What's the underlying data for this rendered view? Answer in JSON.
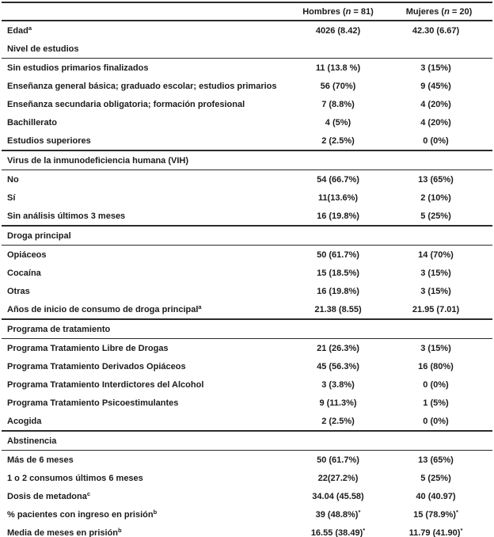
{
  "colors": {
    "text": "#1b1b1b",
    "rule": "#2b2b2b",
    "background": "#ffffff"
  },
  "table": {
    "header": {
      "label": "",
      "hombres": {
        "pre": "Hombres (",
        "n": "n",
        "post": " = 81)"
      },
      "mujeres": {
        "pre": "Mujeres (",
        "n": "n",
        "post": " = 20)"
      }
    },
    "rows": [
      {
        "type": "data",
        "label": "Edad",
        "label_sup": "a",
        "hombres": "4026 (8.42)",
        "hombres_mark": "",
        "mujeres": "42.30 (6.67)",
        "mujeres_mark": ""
      },
      {
        "type": "section",
        "label": "Nivel de estudios",
        "top_rule": false
      },
      {
        "type": "data",
        "label": "Sin estudios primarios finalizados",
        "label_sup": "",
        "hombres": "11 (13.8 %)",
        "hombres_mark": "",
        "mujeres": "3 (15%)",
        "mujeres_mark": ""
      },
      {
        "type": "data",
        "label": "Enseñanza general básica; graduado escolar; estudios primarios",
        "label_sup": "",
        "hombres": "56 (70%)",
        "hombres_mark": "",
        "mujeres": "9 (45%)",
        "mujeres_mark": ""
      },
      {
        "type": "data",
        "label": "Enseñanza secundaria obligatoria; formación profesional",
        "label_sup": "",
        "hombres": "7 (8.8%)",
        "hombres_mark": "",
        "mujeres": "4 (20%)",
        "mujeres_mark": ""
      },
      {
        "type": "data",
        "label": "Bachillerato",
        "label_sup": "",
        "hombres": "4 (5%)",
        "hombres_mark": "",
        "mujeres": "4 (20%)",
        "mujeres_mark": ""
      },
      {
        "type": "data",
        "label": "Estudios superiores",
        "label_sup": "",
        "hombres": "2 (2.5%)",
        "hombres_mark": "",
        "mujeres": "0 (0%)",
        "mujeres_mark": ""
      },
      {
        "type": "section",
        "label": "Virus de la inmunodeficiencia humana (VIH)",
        "top_rule": true
      },
      {
        "type": "data",
        "label": "No",
        "label_sup": "",
        "hombres": "54 (66.7%)",
        "hombres_mark": "",
        "mujeres": "13 (65%)",
        "mujeres_mark": ""
      },
      {
        "type": "data",
        "label": "Sí",
        "label_sup": "",
        "hombres": "11(13.6%)",
        "hombres_mark": "",
        "mujeres": "2 (10%)",
        "mujeres_mark": ""
      },
      {
        "type": "data",
        "label": "Sin análisis últimos 3 meses",
        "label_sup": "",
        "hombres": "16 (19.8%)",
        "hombres_mark": "",
        "mujeres": "5 (25%)",
        "mujeres_mark": ""
      },
      {
        "type": "section",
        "label": "Droga principal",
        "top_rule": true
      },
      {
        "type": "data",
        "label": "Opiáceos",
        "label_sup": "",
        "hombres": "50 (61.7%)",
        "hombres_mark": "",
        "mujeres": "14 (70%)",
        "mujeres_mark": ""
      },
      {
        "type": "data",
        "label": "Cocaína",
        "label_sup": "",
        "hombres": "15 (18.5%)",
        "hombres_mark": "",
        "mujeres": "3 (15%)",
        "mujeres_mark": ""
      },
      {
        "type": "data",
        "label": "Otras",
        "label_sup": "",
        "hombres": "16 (19.8%)",
        "hombres_mark": "",
        "mujeres": "3 (15%)",
        "mujeres_mark": ""
      },
      {
        "type": "data",
        "label": "Años de inicio de consumo de droga principal",
        "label_sup": "a",
        "hombres": "21.38 (8.55)",
        "hombres_mark": "",
        "mujeres": "21.95 (7.01)",
        "mujeres_mark": ""
      },
      {
        "type": "section",
        "label": "Programa de tratamiento",
        "top_rule": true
      },
      {
        "type": "data",
        "label": "Programa Tratamiento Libre de Drogas",
        "label_sup": "",
        "hombres": "21 (26.3%)",
        "hombres_mark": "",
        "mujeres": "3 (15%)",
        "mujeres_mark": ""
      },
      {
        "type": "data",
        "label": "Programa Tratamiento Derivados Opiáceos",
        "label_sup": "",
        "hombres": "45 (56.3%)",
        "hombres_mark": "",
        "mujeres": "16 (80%)",
        "mujeres_mark": ""
      },
      {
        "type": "data",
        "label": "Programa Tratamiento Interdictores del Alcohol",
        "label_sup": "",
        "hombres": "3 (3.8%)",
        "hombres_mark": "",
        "mujeres": "0 (0%)",
        "mujeres_mark": ""
      },
      {
        "type": "data",
        "label": "Programa Tratamiento Psicoestimulantes",
        "label_sup": "",
        "hombres": "9 (11.3%)",
        "hombres_mark": "",
        "mujeres": "1 (5%)",
        "mujeres_mark": ""
      },
      {
        "type": "data",
        "label": "Acogida",
        "label_sup": "",
        "hombres": "2 (2.5%)",
        "hombres_mark": "",
        "mujeres": "0 (0%)",
        "mujeres_mark": ""
      },
      {
        "type": "section",
        "label": "Abstinencia",
        "top_rule": true
      },
      {
        "type": "data",
        "label": "Más de 6 meses",
        "label_sup": "",
        "hombres": "50 (61.7%)",
        "hombres_mark": "",
        "mujeres": "13 (65%)",
        "mujeres_mark": ""
      },
      {
        "type": "data",
        "label": "1 o 2 consumos últimos 6 meses",
        "label_sup": "",
        "hombres": "22(27.2%)",
        "hombres_mark": "",
        "mujeres": "5 (25%)",
        "mujeres_mark": ""
      },
      {
        "type": "data",
        "label": "Dosis de metadona",
        "label_sup": "c",
        "hombres": "34.04 (45.58)",
        "hombres_mark": "",
        "mujeres": "40 (40.97)",
        "mujeres_mark": ""
      },
      {
        "type": "data",
        "label": "% pacientes con ingreso en prisión",
        "label_sup": "b",
        "hombres": "39 (48.8%)",
        "hombres_mark": "*",
        "mujeres": "15 (78.9%)",
        "mujeres_mark": "*"
      },
      {
        "type": "data",
        "label": "Media de meses en prisión",
        "label_sup": "b",
        "hombres": "16.55 (38.49)",
        "hombres_mark": "*",
        "mujeres": "11.79 (41.90)",
        "mujeres_mark": "*"
      }
    ]
  }
}
